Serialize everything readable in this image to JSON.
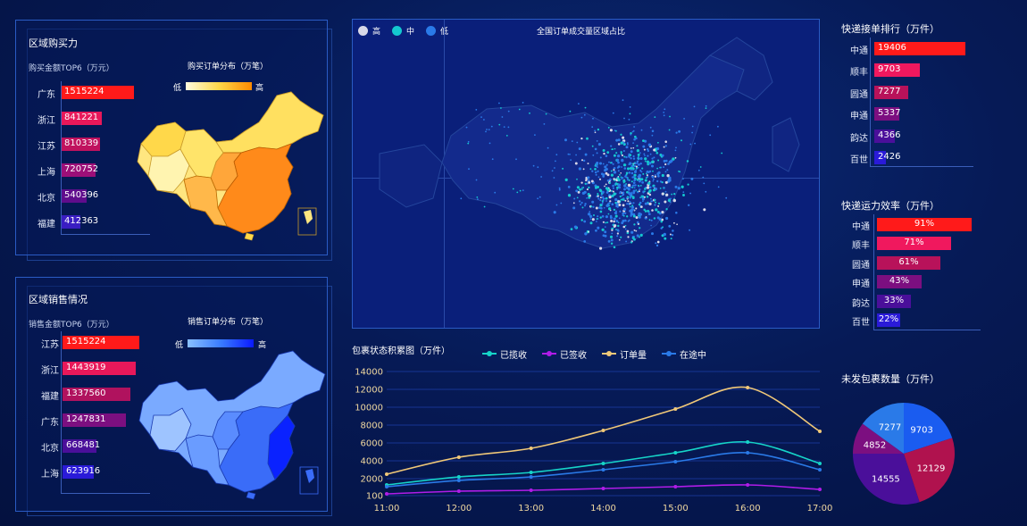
{
  "region_purchase": {
    "title": "区域购买力",
    "subtitle": "购买金额TOP6（万元）",
    "map_title": "购买订单分布（万笔）",
    "legend_low": "低",
    "legend_high": "高",
    "items": [
      {
        "label": "广东",
        "value": "1515224",
        "num": 1515224,
        "color": "#ff1a1a"
      },
      {
        "label": "浙江",
        "value": "841221",
        "num": 841221,
        "color": "#e8185a"
      },
      {
        "label": "江苏",
        "value": "810339",
        "num": 810339,
        "color": "#c0125e"
      },
      {
        "label": "上海",
        "value": "720752",
        "num": 720752,
        "color": "#9c0f78"
      },
      {
        "label": "北京",
        "value": "540396",
        "num": 540396,
        "color": "#5f0c8c"
      },
      {
        "label": "福建",
        "value": "412363",
        "num": 412363,
        "color": "#3a1dc2"
      }
    ]
  },
  "region_sales": {
    "title": "区域销售情况",
    "subtitle": "销售金额TOP6（万元）",
    "map_title": "销售订单分布（万笔）",
    "legend_low": "低",
    "legend_high": "高",
    "items": [
      {
        "label": "江苏",
        "value": "1515224",
        "num": 1515224,
        "color": "#ff1a1a"
      },
      {
        "label": "浙江",
        "value": "1443919",
        "num": 1443919,
        "color": "#e8185a"
      },
      {
        "label": "福建",
        "value": "1337560",
        "num": 1337560,
        "color": "#b0125e"
      },
      {
        "label": "广东",
        "value": "1247831",
        "num": 1247831,
        "color": "#7c0f80"
      },
      {
        "label": "北京",
        "value": "668481",
        "num": 668481,
        "color": "#4a0f9a"
      },
      {
        "label": "上海",
        "value": "623916",
        "num": 623916,
        "color": "#2a1ad8"
      }
    ]
  },
  "center_map": {
    "title": "全国订单成交量区域占比",
    "legend": [
      {
        "label": "高",
        "color": "#d8d8e8"
      },
      {
        "label": "中",
        "color": "#14c8d0"
      },
      {
        "label": "低",
        "color": "#2a7ae8"
      }
    ]
  },
  "courier_orders": {
    "title": "快递接单排行（万件）",
    "items": [
      {
        "label": "中通",
        "value": "19406",
        "num": 19406,
        "color": "#ff1a1a"
      },
      {
        "label": "顺丰",
        "value": "9703",
        "num": 9703,
        "color": "#f0185e"
      },
      {
        "label": "圆通",
        "value": "7277",
        "num": 7277,
        "color": "#b8125a"
      },
      {
        "label": "申通",
        "value": "5337",
        "num": 5337,
        "color": "#7c0f80"
      },
      {
        "label": "韵达",
        "value": "4366",
        "num": 4366,
        "color": "#4a0f9a"
      },
      {
        "label": "百世",
        "value": "2426",
        "num": 2426,
        "color": "#2a1ad8"
      }
    ]
  },
  "courier_efficiency": {
    "title": "快递运力效率（万件）",
    "items": [
      {
        "label": "中通",
        "value": "91%",
        "num": 91,
        "color": "#ff1a1a"
      },
      {
        "label": "顺丰",
        "value": "71%",
        "num": 71,
        "color": "#f0185e"
      },
      {
        "label": "圆通",
        "value": "61%",
        "num": 61,
        "color": "#b8125a"
      },
      {
        "label": "申通",
        "value": "43%",
        "num": 43,
        "color": "#7c0f80"
      },
      {
        "label": "韵达",
        "value": "33%",
        "num": 33,
        "color": "#4a0f9a"
      },
      {
        "label": "百世",
        "value": "22%",
        "num": 22,
        "color": "#2a1ad8"
      }
    ]
  },
  "chart_data": [
    {
      "type": "area",
      "title": "包裹状态积累图（万件）",
      "categories": [
        "11:00",
        "12:00",
        "13:00",
        "14:00",
        "15:00",
        "16:00",
        "17:00"
      ],
      "ylim": [
        0,
        14000
      ],
      "yticks": [
        "100",
        "2000",
        "4000",
        "6000",
        "8000",
        "10000",
        "12000",
        "14000"
      ],
      "ytick_values": [
        100,
        2000,
        4000,
        6000,
        8000,
        10000,
        12000,
        14000
      ],
      "series": [
        {
          "name": "已揽收",
          "color": "#16d4c8",
          "values": [
            1300,
            2200,
            2700,
            3700,
            4900,
            6100,
            3700
          ]
        },
        {
          "name": "已签收",
          "color": "#b01ce8",
          "values": [
            300,
            600,
            700,
            900,
            1100,
            1300,
            800
          ]
        },
        {
          "name": "订单量",
          "color": "#f0c878",
          "values": [
            2500,
            4400,
            5400,
            7400,
            9800,
            12200,
            7300
          ]
        },
        {
          "name": "在途中",
          "color": "#2a7ae8",
          "values": [
            1100,
            1800,
            2200,
            3000,
            3900,
            4900,
            3000
          ]
        }
      ]
    },
    {
      "type": "pie",
      "title": "未发包裹数量（万件）",
      "slices": [
        {
          "value": 9703,
          "label": "9703",
          "color": "#1a5cf0"
        },
        {
          "value": 12129,
          "label": "12129",
          "color": "#b0124e"
        },
        {
          "value": 14555,
          "label": "14555",
          "color": "#4a0f9a"
        },
        {
          "value": 4852,
          "label": "4852",
          "color": "#7c0f80"
        },
        {
          "value": 7277,
          "label": "7277",
          "color": "#2a7ae8"
        }
      ]
    }
  ]
}
